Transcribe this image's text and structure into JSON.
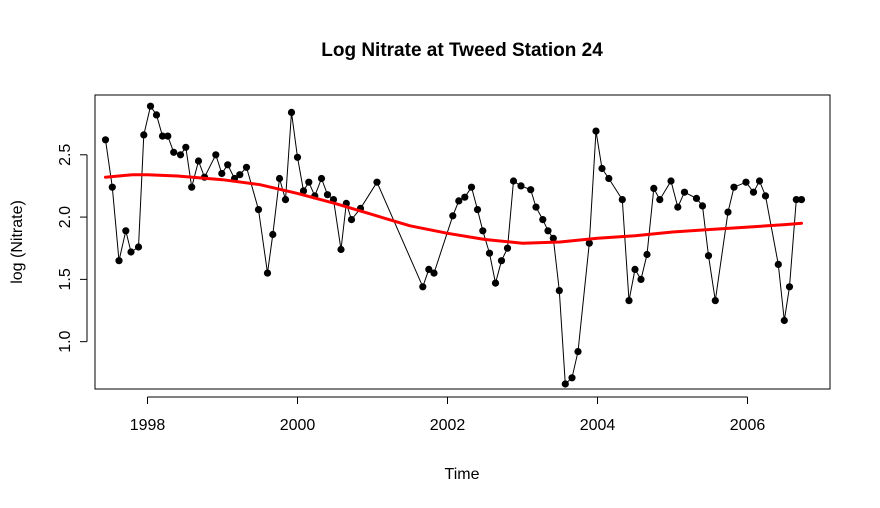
{
  "chart_data": {
    "type": "line",
    "title": "Log Nitrate at Tweed Station 24",
    "xlabel": "Time",
    "ylabel": "log (Nitrate)",
    "xlim": [
      1997.3,
      2007.1
    ],
    "ylim": [
      0.62,
      2.98
    ],
    "x_ticks": [
      1998,
      2000,
      2002,
      2004,
      2006
    ],
    "y_ticks": [
      1.0,
      1.5,
      2.0,
      2.5
    ],
    "grid": false,
    "series": [
      {
        "style": "points-and-line",
        "color": "#000000",
        "x": [
          1997.44,
          1997.53,
          1997.62,
          1997.71,
          1997.78,
          1997.88,
          1997.95,
          1998.04,
          1998.12,
          1998.2,
          1998.27,
          1998.35,
          1998.44,
          1998.51,
          1998.59,
          1998.68,
          1998.76,
          1998.91,
          1998.99,
          1999.07,
          1999.16,
          1999.23,
          1999.32,
          1999.48,
          1999.6,
          1999.67,
          1999.76,
          1999.84,
          1999.92,
          2000.0,
          2000.08,
          2000.15,
          2000.23,
          2000.32,
          2000.4,
          2000.48,
          2000.58,
          2000.65,
          2000.72,
          2000.84,
          2001.06,
          2001.67,
          2001.75,
          2001.82,
          2002.07,
          2002.15,
          2002.23,
          2002.32,
          2002.4,
          2002.47,
          2002.56,
          2002.64,
          2002.72,
          2002.8,
          2002.88,
          2002.98,
          2003.11,
          2003.18,
          2003.27,
          2003.34,
          2003.41,
          2003.49,
          2003.57,
          2003.66,
          2003.74,
          2003.89,
          2003.98,
          2004.06,
          2004.15,
          2004.33,
          2004.42,
          2004.5,
          2004.58,
          2004.66,
          2004.75,
          2004.83,
          2004.98,
          2005.07,
          2005.16,
          2005.32,
          2005.4,
          2005.48,
          2005.57,
          2005.74,
          2005.82,
          2005.98,
          2006.08,
          2006.16,
          2006.24,
          2006.41,
          2006.49,
          2006.56,
          2006.65,
          2006.72
        ],
        "y": [
          2.62,
          2.24,
          1.65,
          1.89,
          1.72,
          1.76,
          2.66,
          2.89,
          2.82,
          2.65,
          2.65,
          2.52,
          2.5,
          2.56,
          2.24,
          2.45,
          2.32,
          2.5,
          2.35,
          2.42,
          2.31,
          2.34,
          2.4,
          2.06,
          1.55,
          1.86,
          2.31,
          2.14,
          2.84,
          2.48,
          2.21,
          2.28,
          2.17,
          2.31,
          2.18,
          2.14,
          1.74,
          2.11,
          1.98,
          2.07,
          2.28,
          1.44,
          1.58,
          1.55,
          2.01,
          2.13,
          2.16,
          2.24,
          2.06,
          1.89,
          1.71,
          1.47,
          1.65,
          1.75,
          2.29,
          2.25,
          2.22,
          2.08,
          1.98,
          1.89,
          1.83,
          1.41,
          0.66,
          0.71,
          0.92,
          1.79,
          2.69,
          2.39,
          2.31,
          2.14,
          1.33,
          1.58,
          1.5,
          1.7,
          2.23,
          2.14,
          2.29,
          2.08,
          2.2,
          2.15,
          2.09,
          1.69,
          1.33,
          2.04,
          2.24,
          2.28,
          2.2,
          2.29,
          2.17,
          1.62,
          1.17,
          1.44,
          2.14,
          2.14
        ]
      },
      {
        "style": "smooth-trend",
        "color": "#ff0000",
        "x": [
          1997.44,
          1997.8,
          1998.0,
          1998.4,
          1999.0,
          1999.5,
          2000.0,
          2000.5,
          2001.0,
          2001.5,
          2002.0,
          2002.5,
          2003.0,
          2003.5,
          2004.0,
          2004.5,
          2005.0,
          2005.5,
          2006.0,
          2006.5,
          2006.72
        ],
        "y": [
          2.32,
          2.34,
          2.34,
          2.33,
          2.3,
          2.26,
          2.19,
          2.11,
          2.02,
          1.93,
          1.87,
          1.82,
          1.79,
          1.8,
          1.83,
          1.85,
          1.88,
          1.9,
          1.92,
          1.94,
          1.95
        ]
      }
    ]
  }
}
